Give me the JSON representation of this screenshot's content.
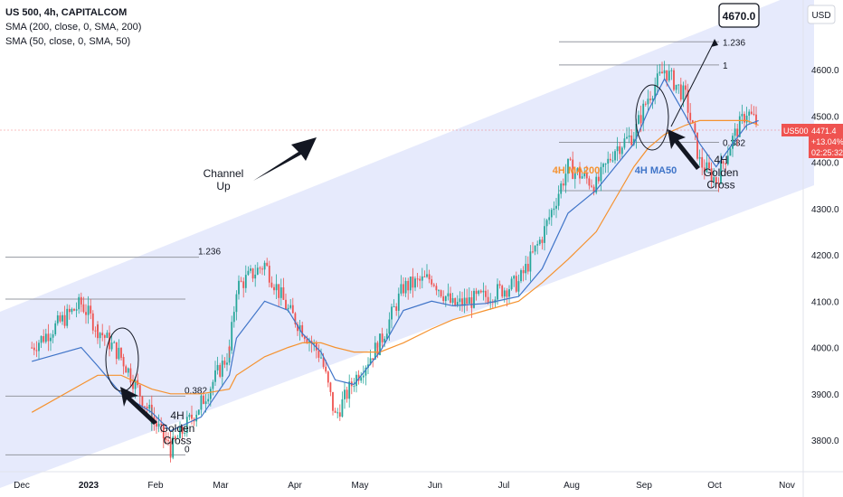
{
  "legend": {
    "symbol": "US 500, 4h, CAPITALCOM",
    "sma200": "SMA (200, close, 0, SMA, 200)",
    "sma50": "SMA (50, close, 0, SMA, 50)"
  },
  "currency": "USD",
  "price_tag": {
    "symbol": "US500",
    "price": "4471.4",
    "change": "+13.04%",
    "time": "02:25:32"
  },
  "chart_data": {
    "type": "line",
    "ylim": [
      3720,
      4720
    ],
    "y_ticks": [
      3800,
      3900,
      4000,
      4100,
      4200,
      4300,
      4400,
      4500,
      4600
    ],
    "y_tick_labels": [
      "3800.0",
      "3900.0",
      "4000.0",
      "4100.0",
      "4200.0",
      "4300.0",
      "4400.0",
      "4500.0",
      "4600.0"
    ],
    "x_tick_labels": [
      "Dec",
      "2023",
      "Feb",
      "Mar",
      "Apr",
      "May",
      "Jun",
      "Jul",
      "Aug",
      "Sep",
      "Oct",
      "Nov"
    ],
    "x_dates": [
      "2022-11-07",
      "2022-11-28",
      "2022-12-05",
      "2022-12-15",
      "2022-12-28",
      "2023-01-05",
      "2023-01-18",
      "2023-01-30",
      "2023-02-02",
      "2023-02-14",
      "2023-02-24",
      "2023-03-02",
      "2023-03-10",
      "2023-03-16",
      "2023-03-24",
      "2023-04-04",
      "2023-04-14",
      "2023-04-26",
      "2023-05-05",
      "2023-05-19",
      "2023-06-02",
      "2023-06-12",
      "2023-06-23",
      "2023-07-05",
      "2023-07-13",
      "2023-07-21",
      "2023-07-27",
      "2023-08-03",
      "2023-08-12",
      "2023-08-18",
      "2023-08-25",
      "2023-09-01",
      "2023-09-07",
      "2023-09-12"
    ],
    "series": [
      {
        "name": "US 500, 4h, CAPITALCOM",
        "color": "#26a69a",
        "values": [
          4000,
          4095,
          4040,
          3980,
          3850,
          3780,
          3880,
          3990,
          4130,
          4180,
          4080,
          4040,
          3980,
          3850,
          3930,
          4010,
          4130,
          4150,
          4090,
          4110,
          4140,
          4240,
          4390,
          4350,
          4430,
          4460,
          4540,
          4600,
          4540,
          4400,
          4360,
          4450,
          4510,
          4480
        ]
      },
      {
        "name": "4H MA50",
        "color": "#3f74c8",
        "values": [
          3970,
          4000,
          3960,
          3900,
          3860,
          3820,
          3850,
          3940,
          4020,
          4100,
          4080,
          4030,
          3990,
          3930,
          3920,
          3990,
          4080,
          4100,
          4090,
          4095,
          4110,
          4170,
          4290,
          4340,
          4390,
          4440,
          4510,
          4580,
          4500,
          4440,
          4390,
          4440,
          4480,
          4490
        ]
      },
      {
        "name": "4H MA200",
        "color": "#f5922f",
        "values": [
          3860,
          3920,
          3940,
          3940,
          3910,
          3900,
          3900,
          3910,
          3940,
          3980,
          4000,
          4010,
          4010,
          4000,
          3990,
          3990,
          4010,
          4040,
          4060,
          4080,
          4100,
          4140,
          4190,
          4250,
          4320,
          4390,
          4430,
          4460,
          4480,
          4490,
          4490,
          4490,
          4490,
          4480
        ]
      }
    ],
    "annotations": {
      "target": "4670.0",
      "channel_label": "Channel\nUp",
      "ma200_label": "4H MA200",
      "ma50_label": "4H MA50",
      "golden_cross_left": "4H\nGolden\nCross",
      "golden_cross_right": "4H\nGolden\nCross",
      "fib_left": {
        "1.236": 4195,
        "0.382": 3895,
        "0": 3768
      },
      "fib_right": {
        "1.236": 4660,
        "1": 4610,
        "0.382": 4443
      }
    },
    "grid": false
  },
  "colors": {
    "channel_fill": "#e6eafc",
    "up": "#26a69a",
    "down": "#ef5350",
    "ma50": "#3f74c8",
    "ma200": "#f5922f",
    "price_tag": "#ef5350"
  }
}
